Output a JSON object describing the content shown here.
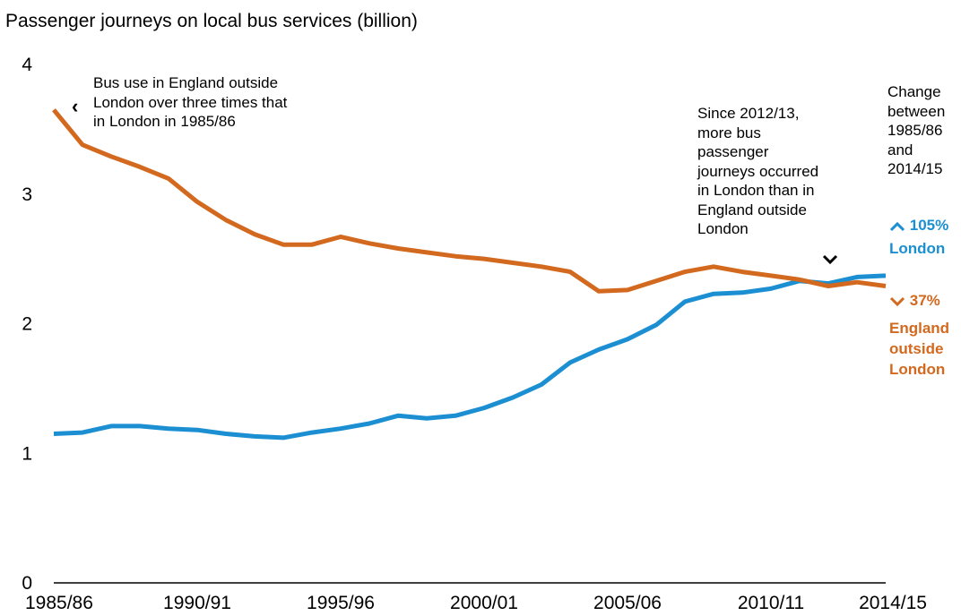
{
  "title": "Passenger journeys on local bus services (billion)",
  "annotations": {
    "left_note": [
      "Bus use in England outside",
      "London over three times that",
      "in London in 1985/86"
    ],
    "middle_note": [
      "Since 2012/13,",
      "more bus",
      "passenger",
      "journeys occurred",
      "in London than in",
      "England outside",
      "London"
    ],
    "change_note": [
      "Change",
      "between",
      "1985/86",
      "and",
      "2014/15"
    ],
    "london_change": "105%",
    "london_label": "London",
    "england_change": "37%",
    "england_label": [
      "England",
      "outside",
      "London"
    ]
  },
  "colors": {
    "london": "#1b8fd2",
    "england": "#d2691e",
    "axis": "#000000"
  },
  "chart_data": {
    "type": "line",
    "title": "Passenger journeys on local bus services (billion)",
    "xlabel": "",
    "ylabel": "",
    "ylim": [
      0,
      4
    ],
    "yticks": [
      0,
      1,
      2,
      3,
      4
    ],
    "x": [
      "1985/86",
      "1986/87",
      "1987/88",
      "1988/89",
      "1989/90",
      "1990/91",
      "1991/92",
      "1992/93",
      "1993/94",
      "1994/95",
      "1995/96",
      "1996/97",
      "1997/98",
      "1998/99",
      "1999/00",
      "2000/01",
      "2001/02",
      "2002/03",
      "2003/04",
      "2004/05",
      "2005/06",
      "2006/07",
      "2007/08",
      "2008/09",
      "2009/10",
      "2010/11",
      "2011/12",
      "2012/13",
      "2013/14",
      "2014/15"
    ],
    "xtick_labels": [
      "1985/86",
      "1990/91",
      "1995/96",
      "2000/01",
      "2005/06",
      "2010/11",
      "2014/15"
    ],
    "series": [
      {
        "name": "London",
        "color": "#1b8fd2",
        "values": [
          1.15,
          1.16,
          1.21,
          1.21,
          1.19,
          1.18,
          1.15,
          1.13,
          1.12,
          1.16,
          1.19,
          1.23,
          1.29,
          1.27,
          1.29,
          1.35,
          1.43,
          1.53,
          1.7,
          1.8,
          1.88,
          1.99,
          2.17,
          2.23,
          2.24,
          2.27,
          2.33,
          2.31,
          2.36,
          2.37
        ]
      },
      {
        "name": "England outside London",
        "color": "#d2691e",
        "values": [
          3.65,
          3.38,
          3.29,
          3.21,
          3.12,
          2.94,
          2.8,
          2.69,
          2.61,
          2.61,
          2.67,
          2.62,
          2.58,
          2.55,
          2.52,
          2.5,
          2.47,
          2.44,
          2.4,
          2.25,
          2.26,
          2.33,
          2.4,
          2.44,
          2.4,
          2.37,
          2.34,
          2.29,
          2.32,
          2.29
        ]
      }
    ],
    "grid": false,
    "legend": "none"
  }
}
